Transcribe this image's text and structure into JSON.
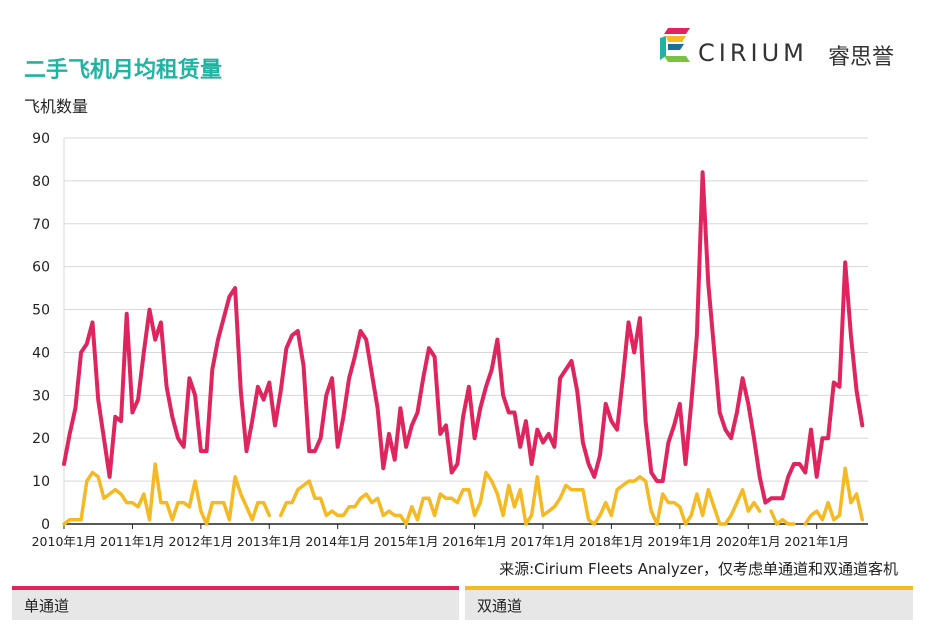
{
  "header": {
    "title": "二手飞机月均租赁量"
  },
  "logo": {
    "name": "CIRIUM",
    "name_cn": "睿思誉",
    "icon": "cirium-logo-icon"
  },
  "footer": {
    "source": "来源:Cirium Fleets Analyzer，仅考虑单通道和双通道客机"
  },
  "chart_data": {
    "type": "line",
    "ylabel": "飞机数量",
    "ylim": [
      0,
      90
    ],
    "yticks": [
      0,
      10,
      20,
      30,
      40,
      50,
      60,
      70,
      80,
      90
    ],
    "xlim": [
      "2010-01",
      "2021-10"
    ],
    "xticks": [
      {
        "label": "2010年1月",
        "month": "2010-01"
      },
      {
        "label": "2011年1月",
        "month": "2011-01"
      },
      {
        "label": "2012年1月",
        "month": "2012-01"
      },
      {
        "label": "2013年1月",
        "month": "2013-01"
      },
      {
        "label": "2014年1月",
        "month": "2014-01"
      },
      {
        "label": "2015年1月",
        "month": "2015-01"
      },
      {
        "label": "2016年1月",
        "month": "2016-01"
      },
      {
        "label": "2017年1月",
        "month": "2017-01"
      },
      {
        "label": "2018年1月",
        "month": "2018-01"
      },
      {
        "label": "2019年1月",
        "month": "2019-01"
      },
      {
        "label": "2020年1月",
        "month": "2020-01"
      },
      {
        "label": "2021年1月",
        "month": "2021-01"
      }
    ],
    "grid": "horizontal",
    "legend": "bottom",
    "series": [
      {
        "name": "单通道",
        "color": "#e0245e",
        "points": [
          [
            "2010-01",
            14
          ],
          [
            "2010-02",
            21
          ],
          [
            "2010-03",
            27
          ],
          [
            "2010-04",
            40
          ],
          [
            "2010-05",
            42
          ],
          [
            "2010-06",
            47
          ],
          [
            "2010-07",
            29
          ],
          [
            "2010-08",
            20
          ],
          [
            "2010-09",
            11
          ],
          [
            "2010-10",
            25
          ],
          [
            "2010-11",
            24
          ],
          [
            "2010-12",
            49
          ],
          [
            "2011-01",
            26
          ],
          [
            "2011-02",
            29
          ],
          [
            "2011-03",
            40
          ],
          [
            "2011-04",
            50
          ],
          [
            "2011-05",
            43
          ],
          [
            "2011-06",
            47
          ],
          [
            "2011-07",
            32
          ],
          [
            "2011-08",
            25
          ],
          [
            "2011-09",
            20
          ],
          [
            "2011-10",
            18
          ],
          [
            "2011-11",
            34
          ],
          [
            "2011-12",
            30
          ],
          [
            "2012-01",
            17
          ],
          [
            "2012-02",
            17
          ],
          [
            "2012-03",
            36
          ],
          [
            "2012-04",
            43
          ],
          [
            "2012-05",
            48
          ],
          [
            "2012-06",
            53
          ],
          [
            "2012-07",
            55
          ],
          [
            "2012-08",
            31
          ],
          [
            "2012-09",
            17
          ],
          [
            "2012-10",
            24
          ],
          [
            "2012-11",
            32
          ],
          [
            "2012-12",
            29
          ],
          [
            "2013-01",
            33
          ],
          [
            "2013-02",
            23
          ],
          [
            "2013-03",
            31
          ],
          [
            "2013-04",
            41
          ],
          [
            "2013-05",
            44
          ],
          [
            "2013-06",
            45
          ],
          [
            "2013-07",
            37
          ],
          [
            "2013-08",
            17
          ],
          [
            "2013-09",
            17
          ],
          [
            "2013-10",
            20
          ],
          [
            "2013-11",
            30
          ],
          [
            "2013-12",
            34
          ],
          [
            "2014-01",
            18
          ],
          [
            "2014-02",
            25
          ],
          [
            "2014-03",
            34
          ],
          [
            "2014-04",
            39
          ],
          [
            "2014-05",
            45
          ],
          [
            "2014-06",
            43
          ],
          [
            "2014-07",
            35
          ],
          [
            "2014-08",
            27
          ],
          [
            "2014-09",
            13
          ],
          [
            "2014-10",
            21
          ],
          [
            "2014-11",
            15
          ],
          [
            "2014-12",
            27
          ],
          [
            "2015-01",
            18
          ],
          [
            "2015-02",
            23
          ],
          [
            "2015-03",
            26
          ],
          [
            "2015-04",
            34
          ],
          [
            "2015-05",
            41
          ],
          [
            "2015-06",
            39
          ],
          [
            "2015-07",
            21
          ],
          [
            "2015-08",
            23
          ],
          [
            "2015-09",
            12
          ],
          [
            "2015-10",
            14
          ],
          [
            "2015-11",
            25
          ],
          [
            "2015-12",
            32
          ],
          [
            "2016-01",
            20
          ],
          [
            "2016-02",
            27
          ],
          [
            "2016-03",
            32
          ],
          [
            "2016-04",
            36
          ],
          [
            "2016-05",
            43
          ],
          [
            "2016-06",
            30
          ],
          [
            "2016-07",
            26
          ],
          [
            "2016-08",
            26
          ],
          [
            "2016-09",
            18
          ],
          [
            "2016-10",
            24
          ],
          [
            "2016-11",
            14
          ],
          [
            "2016-12",
            22
          ],
          [
            "2017-01",
            19
          ],
          [
            "2017-02",
            21
          ],
          [
            "2017-03",
            18
          ],
          [
            "2017-04",
            34
          ],
          [
            "2017-05",
            36
          ],
          [
            "2017-06",
            38
          ],
          [
            "2017-07",
            31
          ],
          [
            "2017-08",
            19
          ],
          [
            "2017-09",
            14
          ],
          [
            "2017-10",
            11
          ],
          [
            "2017-11",
            16
          ],
          [
            "2017-12",
            28
          ],
          [
            "2018-01",
            24
          ],
          [
            "2018-02",
            22
          ],
          [
            "2018-03",
            34
          ],
          [
            "2018-04",
            47
          ],
          [
            "2018-05",
            40
          ],
          [
            "2018-06",
            48
          ],
          [
            "2018-07",
            24
          ],
          [
            "2018-08",
            12
          ],
          [
            "2018-09",
            10
          ],
          [
            "2018-10",
            10
          ],
          [
            "2018-11",
            19
          ],
          [
            "2018-12",
            23
          ],
          [
            "2019-01",
            28
          ],
          [
            "2019-02",
            14
          ],
          [
            "2019-03",
            28
          ],
          [
            "2019-04",
            44
          ],
          [
            "2019-05",
            82
          ],
          [
            "2019-06",
            56
          ],
          [
            "2019-07",
            41
          ],
          [
            "2019-08",
            26
          ],
          [
            "2019-09",
            22
          ],
          [
            "2019-10",
            20
          ],
          [
            "2019-11",
            26
          ],
          [
            "2019-12",
            34
          ],
          [
            "2020-01",
            28
          ],
          [
            "2020-02",
            20
          ],
          [
            "2020-03",
            11
          ],
          [
            "2020-04",
            5
          ],
          [
            "2020-05",
            6
          ],
          [
            "2020-06",
            6
          ],
          [
            "2020-07",
            6
          ],
          [
            "2020-08",
            11
          ],
          [
            "2020-09",
            14
          ],
          [
            "2020-10",
            14
          ],
          [
            "2020-11",
            12
          ],
          [
            "2020-12",
            22
          ],
          [
            "2021-01",
            11
          ],
          [
            "2021-02",
            20
          ],
          [
            "2021-03",
            20
          ],
          [
            "2021-04",
            33
          ],
          [
            "2021-05",
            32
          ],
          [
            "2021-06",
            61
          ],
          [
            "2021-07",
            44
          ],
          [
            "2021-08",
            31
          ],
          [
            "2021-09",
            23
          ]
        ]
      },
      {
        "name": "双通道",
        "color": "#f5b924",
        "points": [
          [
            "2010-01",
            0
          ],
          [
            "2010-02",
            1
          ],
          [
            "2010-03",
            1
          ],
          [
            "2010-04",
            1
          ],
          [
            "2010-05",
            10
          ],
          [
            "2010-06",
            12
          ],
          [
            "2010-07",
            11
          ],
          [
            "2010-08",
            6
          ],
          [
            "2010-09",
            7
          ],
          [
            "2010-10",
            8
          ],
          [
            "2010-11",
            7
          ],
          [
            "2010-12",
            5
          ],
          [
            "2011-01",
            5
          ],
          [
            "2011-02",
            4
          ],
          [
            "2011-03",
            7
          ],
          [
            "2011-04",
            1
          ],
          [
            "2011-05",
            14
          ],
          [
            "2011-06",
            5
          ],
          [
            "2011-07",
            5
          ],
          [
            "2011-08",
            1
          ],
          [
            "2011-09",
            5
          ],
          [
            "2011-10",
            5
          ],
          [
            "2011-11",
            4
          ],
          [
            "2011-12",
            10
          ],
          [
            "2012-01",
            3
          ],
          [
            "2012-02",
            0
          ],
          [
            "2012-03",
            5
          ],
          [
            "2012-04",
            5
          ],
          [
            "2012-05",
            5
          ],
          [
            "2012-06",
            1
          ],
          [
            "2012-07",
            11
          ],
          [
            "2012-08",
            7
          ],
          [
            "2012-09",
            4
          ],
          [
            "2012-10",
            1
          ],
          [
            "2012-11",
            5
          ],
          [
            "2012-12",
            5
          ],
          [
            "2013-01",
            2
          ],
          null,
          [
            "2013-03",
            2
          ],
          [
            "2013-04",
            5
          ],
          [
            "2013-05",
            5
          ],
          [
            "2013-06",
            8
          ],
          [
            "2013-07",
            9
          ],
          [
            "2013-08",
            10
          ],
          [
            "2013-09",
            6
          ],
          [
            "2013-10",
            6
          ],
          [
            "2013-11",
            2
          ],
          [
            "2013-12",
            3
          ],
          [
            "2014-01",
            2
          ],
          [
            "2014-02",
            2
          ],
          [
            "2014-03",
            4
          ],
          [
            "2014-04",
            4
          ],
          [
            "2014-05",
            6
          ],
          [
            "2014-06",
            7
          ],
          [
            "2014-07",
            5
          ],
          [
            "2014-08",
            6
          ],
          [
            "2014-09",
            2
          ],
          [
            "2014-10",
            3
          ],
          [
            "2014-11",
            2
          ],
          [
            "2014-12",
            2
          ],
          [
            "2015-01",
            0
          ],
          [
            "2015-02",
            4
          ],
          [
            "2015-03",
            1
          ],
          [
            "2015-04",
            6
          ],
          [
            "2015-05",
            6
          ],
          [
            "2015-06",
            2
          ],
          [
            "2015-07",
            7
          ],
          [
            "2015-08",
            6
          ],
          [
            "2015-09",
            6
          ],
          [
            "2015-10",
            5
          ],
          [
            "2015-11",
            8
          ],
          [
            "2015-12",
            8
          ],
          [
            "2016-01",
            2
          ],
          [
            "2016-02",
            5
          ],
          [
            "2016-03",
            12
          ],
          [
            "2016-04",
            10
          ],
          [
            "2016-05",
            7
          ],
          [
            "2016-06",
            2
          ],
          [
            "2016-07",
            9
          ],
          [
            "2016-08",
            4
          ],
          [
            "2016-09",
            8
          ],
          [
            "2016-10",
            0
          ],
          [
            "2016-11",
            2
          ],
          [
            "2016-12",
            11
          ],
          [
            "2017-01",
            2
          ],
          [
            "2017-02",
            3
          ],
          [
            "2017-03",
            4
          ],
          [
            "2017-04",
            6
          ],
          [
            "2017-05",
            9
          ],
          [
            "2017-06",
            8
          ],
          [
            "2017-07",
            8
          ],
          [
            "2017-08",
            8
          ],
          [
            "2017-09",
            1
          ],
          [
            "2017-10",
            0
          ],
          [
            "2017-11",
            2
          ],
          [
            "2017-12",
            5
          ],
          [
            "2018-01",
            2
          ],
          [
            "2018-02",
            8
          ],
          [
            "2018-03",
            9
          ],
          [
            "2018-04",
            10
          ],
          [
            "2018-05",
            10
          ],
          [
            "2018-06",
            11
          ],
          [
            "2018-07",
            10
          ],
          [
            "2018-08",
            3
          ],
          [
            "2018-09",
            0
          ],
          [
            "2018-10",
            7
          ],
          [
            "2018-11",
            5
          ],
          [
            "2018-12",
            5
          ],
          [
            "2019-01",
            4
          ],
          [
            "2019-02",
            0
          ],
          [
            "2019-03",
            2
          ],
          [
            "2019-04",
            7
          ],
          [
            "2019-05",
            2
          ],
          [
            "2019-06",
            8
          ],
          [
            "2019-07",
            4
          ],
          [
            "2019-08",
            0
          ],
          [
            "2019-09",
            0
          ],
          [
            "2019-10",
            2
          ],
          [
            "2019-11",
            5
          ],
          [
            "2019-12",
            8
          ],
          [
            "2020-01",
            3
          ],
          [
            "2020-02",
            5
          ],
          [
            "2020-03",
            3
          ],
          null,
          [
            "2020-05",
            3
          ],
          [
            "2020-06",
            0
          ],
          [
            "2020-07",
            1
          ],
          [
            "2020-08",
            0
          ],
          [
            "2020-09",
            0
          ],
          null,
          [
            "2020-11",
            0
          ],
          [
            "2020-12",
            2
          ],
          [
            "2021-01",
            3
          ],
          [
            "2021-02",
            1
          ],
          [
            "2021-03",
            5
          ],
          [
            "2021-04",
            1
          ],
          [
            "2021-05",
            2
          ],
          [
            "2021-06",
            13
          ],
          [
            "2021-07",
            5
          ],
          [
            "2021-08",
            7
          ],
          [
            "2021-09",
            1
          ]
        ]
      }
    ]
  }
}
